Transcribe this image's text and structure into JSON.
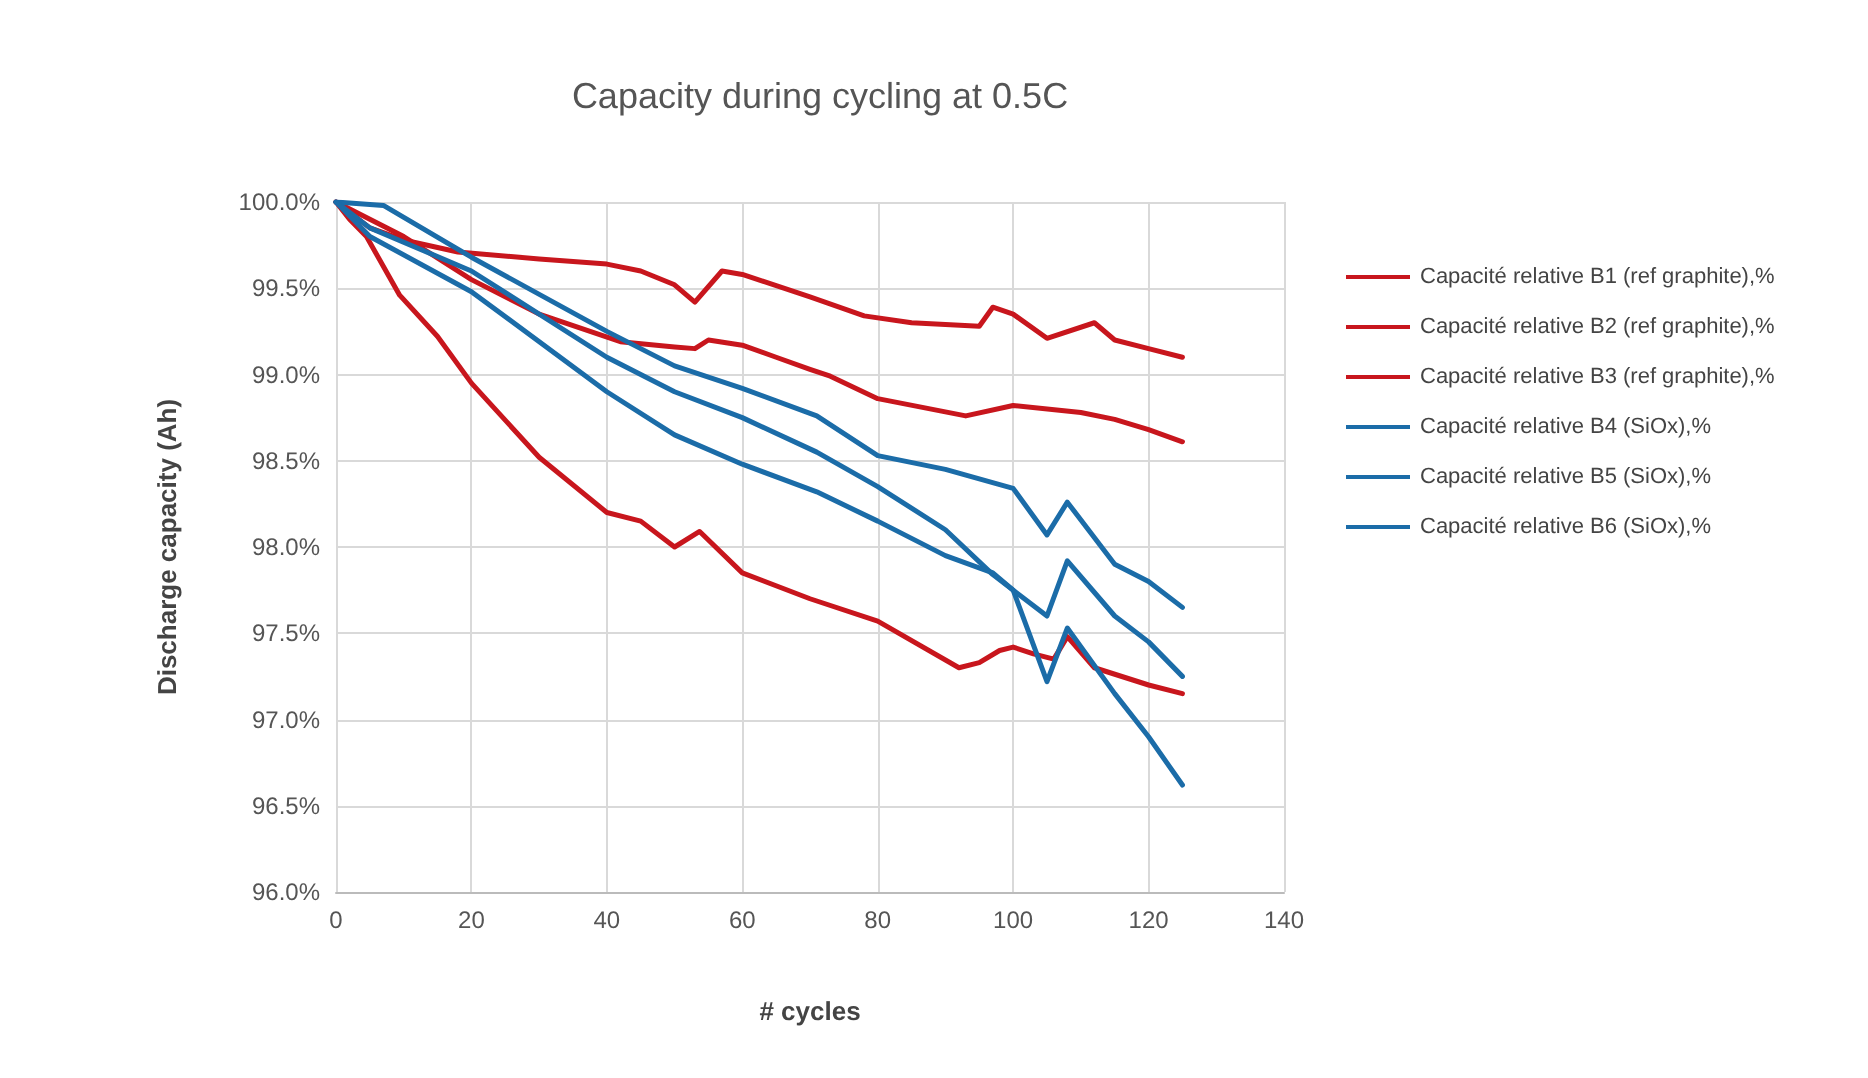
{
  "chart_data": {
    "type": "line",
    "title": "Capacity during cycling at 0.5C",
    "xlabel": "# cycles",
    "ylabel": "Discharge capacity (Ah)",
    "xlim": [
      0,
      140
    ],
    "xticks": [
      0,
      20,
      40,
      60,
      80,
      100,
      120,
      140
    ],
    "ylim": [
      96,
      100
    ],
    "yticks": [
      {
        "value": 96,
        "label": "96.0%"
      },
      {
        "value": 96.5,
        "label": "96.5%"
      },
      {
        "value": 97,
        "label": "97.0%"
      },
      {
        "value": 97.5,
        "label": "97.5%"
      },
      {
        "value": 98,
        "label": "98.0%"
      },
      {
        "value": 98.5,
        "label": "98.5%"
      },
      {
        "value": 99,
        "label": "99.0%"
      },
      {
        "value": 99.5,
        "label": "99.5%"
      },
      {
        "value": 100,
        "label": "100.0%"
      }
    ],
    "grid": true,
    "legend": "right",
    "marker": "none",
    "line_style": "solid",
    "series": [
      {
        "name": "Capacité relative B1 (ref graphite),%",
        "color": "#c8161d",
        "x": [
          0,
          5,
          10,
          18,
          30,
          40,
          45,
          50,
          53,
          57,
          60,
          70,
          78,
          85,
          95,
          97,
          100,
          105,
          112,
          115,
          120,
          125
        ],
        "values": [
          100,
          99.85,
          99.78,
          99.71,
          99.67,
          99.64,
          99.6,
          99.52,
          99.42,
          99.6,
          99.58,
          99.45,
          99.34,
          99.3,
          99.28,
          99.39,
          99.35,
          99.21,
          99.3,
          99.2,
          99.15,
          99.1
        ]
      },
      {
        "name": "Capacité relative B2 (ref graphite),%",
        "color": "#c8161d",
        "x": [
          0,
          5,
          10,
          20,
          30,
          42,
          50,
          53,
          55,
          60,
          65,
          70,
          73,
          80,
          93,
          100,
          110,
          115,
          120,
          125
        ],
        "values": [
          100,
          99.9,
          99.8,
          99.55,
          99.35,
          99.19,
          99.16,
          99.15,
          99.2,
          99.17,
          99.1,
          99.03,
          98.99,
          98.86,
          98.76,
          98.82,
          98.78,
          98.74,
          98.68,
          98.61
        ]
      },
      {
        "name": "Capacité relative B3 (ref graphite),%",
        "color": "#c8161d",
        "x": [
          0,
          2,
          4.5,
          9.4,
          15,
          20,
          30,
          40,
          45,
          50,
          53.7,
          60,
          70,
          80,
          92,
          95,
          98,
          100,
          103,
          106,
          108,
          112,
          120,
          125
        ],
        "values": [
          100,
          99.9,
          99.8,
          99.46,
          99.22,
          98.95,
          98.52,
          98.2,
          98.15,
          98.0,
          98.09,
          97.85,
          97.7,
          97.57,
          97.3,
          97.33,
          97.4,
          97.42,
          97.38,
          97.35,
          97.48,
          97.3,
          97.2,
          97.15
        ]
      },
      {
        "name": "Capacité relative B4 (SiOx),%",
        "color": "#1b6ca8",
        "x": [
          0,
          7,
          20,
          40,
          50,
          60,
          71,
          80,
          90,
          100,
          105,
          108,
          115,
          120,
          125
        ],
        "values": [
          100,
          99.98,
          99.68,
          99.25,
          99.05,
          98.92,
          98.76,
          98.53,
          98.45,
          98.34,
          98.07,
          98.26,
          97.9,
          97.8,
          97.65
        ]
      },
      {
        "name": "Capacité relative B5 (SiOx),%",
        "color": "#1b6ca8",
        "x": [
          0,
          5,
          20,
          40,
          50,
          60,
          71,
          80,
          90,
          97,
          105,
          108,
          115,
          120,
          125
        ],
        "values": [
          100,
          99.85,
          99.6,
          99.1,
          98.9,
          98.75,
          98.55,
          98.35,
          98.1,
          97.84,
          97.6,
          97.92,
          97.6,
          97.45,
          97.25
        ]
      },
      {
        "name": "Capacité relative B6 (SiOx),%",
        "color": "#1b6ca8",
        "x": [
          0,
          5,
          20,
          40,
          50,
          60,
          71,
          80,
          90,
          97,
          100,
          105,
          108,
          115,
          120,
          125
        ],
        "values": [
          100,
          99.8,
          99.48,
          98.9,
          98.65,
          98.48,
          98.32,
          98.15,
          97.95,
          97.85,
          97.75,
          97.22,
          97.53,
          97.15,
          96.9,
          96.62
        ]
      }
    ]
  }
}
